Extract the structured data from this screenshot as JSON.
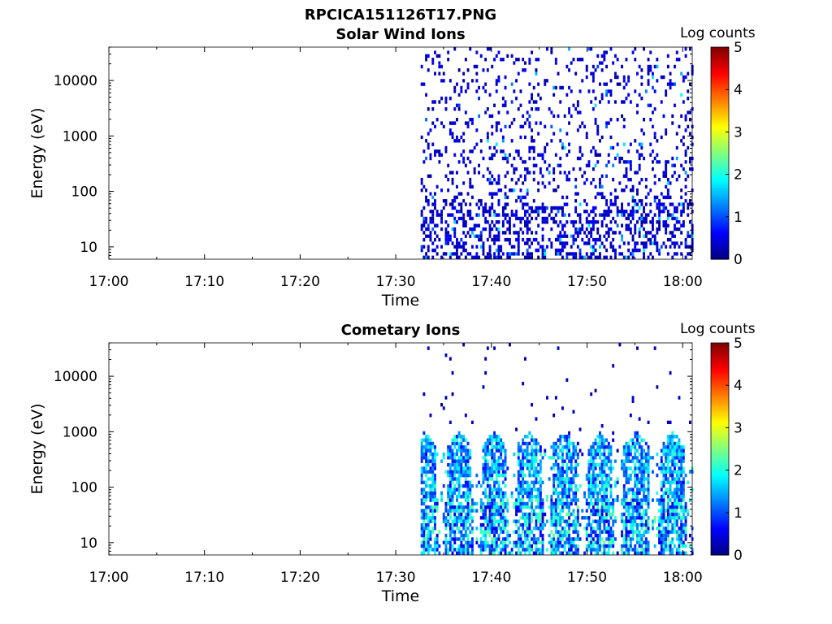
{
  "figure": {
    "filename": "RPCICA151126T17.PNG"
  },
  "panels": [
    {
      "title": "Solar Wind Ions",
      "colorbar_label": "Log counts",
      "xlabel": "Time",
      "ylabel": "Energy (eV)"
    },
    {
      "title": "Cometary Ions",
      "colorbar_label": "Log counts",
      "xlabel": "Time",
      "ylabel": "Energy (eV)"
    }
  ],
  "colors": {
    "background": "#ffffff",
    "colormap": "jet"
  },
  "chart_data": [
    {
      "type": "heatmap",
      "title": "Solar Wind Ions",
      "xlabel": "Time",
      "ylabel": "Energy (eV)",
      "x_ticks": [
        "17:00",
        "17:10",
        "17:20",
        "17:30",
        "17:40",
        "17:50",
        "18:00"
      ],
      "x_range_minutes": [
        0,
        61
      ],
      "y_scale": "log",
      "y_ticks": [
        10,
        100,
        1000,
        10000
      ],
      "y_range_eV": [
        6,
        40000
      ],
      "colorbar": {
        "label": "Log counts",
        "range": [
          0,
          5
        ],
        "ticks": [
          0,
          1,
          2,
          3,
          4,
          5
        ]
      },
      "data_start": "17:32",
      "data_end": "18:01",
      "description_values": {
        "dominant_level": 0.2,
        "max_level": 1.9
      },
      "grid": false
    },
    {
      "type": "heatmap",
      "title": "Cometary Ions",
      "xlabel": "Time",
      "ylabel": "Energy (eV)",
      "x_ticks": [
        "17:00",
        "17:10",
        "17:20",
        "17:30",
        "17:40",
        "17:50",
        "18:00"
      ],
      "x_range_minutes": [
        0,
        61
      ],
      "y_scale": "log",
      "y_ticks": [
        10,
        100,
        1000,
        10000
      ],
      "y_range_eV": [
        6,
        40000
      ],
      "colorbar": {
        "label": "Log counts",
        "range": [
          0,
          5
        ],
        "ticks": [
          0,
          1,
          2,
          3,
          4,
          5
        ]
      },
      "data_start": "17:32",
      "data_end": "18:01",
      "burst_centers_minutes": [
        32.8,
        36.5,
        40.2,
        43.8,
        47.5,
        51.3,
        55.0,
        58.8
      ],
      "description_values": {
        "dominant_level": 1.5,
        "max_level": 3.0
      },
      "grid": false
    }
  ]
}
